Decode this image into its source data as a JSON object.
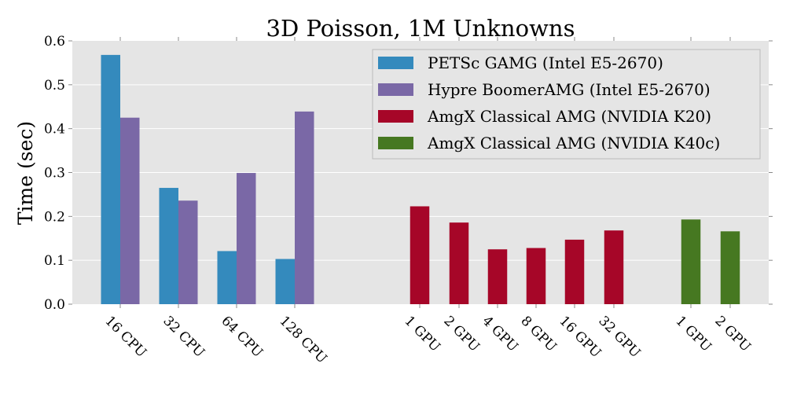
{
  "chart_data": {
    "type": "bar",
    "title": "3D Poisson, 1M Unknowns",
    "ylabel": "Time (sec)",
    "xlabel": "",
    "ylim": [
      0,
      0.6
    ],
    "yticks": [
      "0.0",
      "0.1",
      "0.2",
      "0.3",
      "0.4",
      "0.5",
      "0.6"
    ],
    "ytick_values": [
      0,
      0.1,
      0.2,
      0.3,
      0.4,
      0.5,
      0.6
    ],
    "grid": true,
    "legend_position": "top-right",
    "categories": [
      "16 CPU",
      "32 CPU",
      "64 CPU",
      "128 CPU",
      "1 GPU",
      "2 GPU",
      "4 GPU",
      "8 GPU",
      "16 GPU",
      "32 GPU",
      "1 GPU",
      "2 GPU"
    ],
    "series": [
      {
        "name": "PETSc GAMG (Intel E5-2670)",
        "color": "#348abd",
        "values": [
          0.568,
          0.265,
          0.121,
          0.103,
          null,
          null,
          null,
          null,
          null,
          null,
          null,
          null
        ]
      },
      {
        "name": "Hypre BoomerAMG (Intel E5-2670)",
        "color": "#7a68a6",
        "values": [
          0.425,
          0.236,
          0.299,
          0.439,
          null,
          null,
          null,
          null,
          null,
          null,
          null,
          null
        ]
      },
      {
        "name": "AmgX Classical AMG (NVIDIA K20)",
        "color": "#a60628",
        "values": [
          null,
          null,
          null,
          null,
          0.223,
          0.186,
          0.125,
          0.128,
          0.147,
          0.168,
          null,
          null
        ]
      },
      {
        "name": "AmgX Classical AMG (NVIDIA K40c)",
        "color": "#467821",
        "values": [
          null,
          null,
          null,
          null,
          null,
          null,
          null,
          null,
          null,
          null,
          0.193,
          0.166
        ]
      }
    ]
  }
}
